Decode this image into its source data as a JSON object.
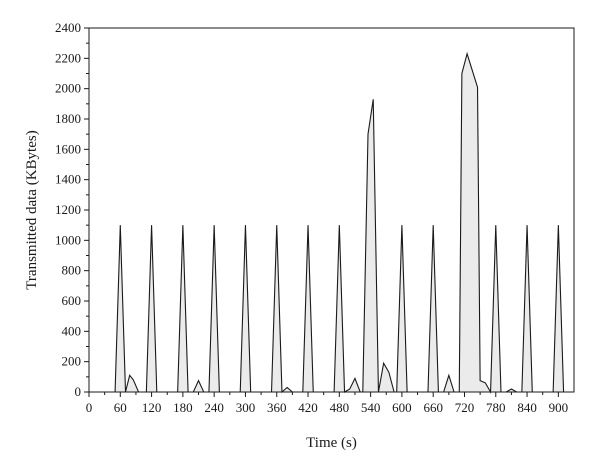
{
  "chart_data": {
    "type": "area",
    "xlabel": "Time (s)",
    "ylabel": "Transmitted data (KBytes)",
    "xlim": [
      0,
      930
    ],
    "ylim": [
      0,
      2400
    ],
    "xticks": [
      0,
      60,
      120,
      180,
      240,
      300,
      360,
      420,
      480,
      540,
      600,
      660,
      720,
      780,
      840,
      900
    ],
    "yticks": [
      0,
      200,
      400,
      600,
      800,
      1000,
      1200,
      1400,
      1600,
      1800,
      2000,
      2200,
      2400
    ],
    "grid": false,
    "fill_color": "#ebebeb",
    "line_color": "#1a1a1a",
    "series": [
      {
        "points": [
          [
            50,
            0
          ],
          [
            60,
            1100
          ],
          [
            70,
            0
          ],
          [
            78,
            110
          ],
          [
            85,
            80
          ],
          [
            95,
            0
          ],
          [
            110,
            0
          ],
          [
            120,
            1100
          ],
          [
            130,
            0
          ],
          [
            170,
            0
          ],
          [
            180,
            1100
          ],
          [
            190,
            0
          ],
          [
            200,
            0
          ],
          [
            210,
            75
          ],
          [
            220,
            0
          ],
          [
            230,
            0
          ],
          [
            240,
            1100
          ],
          [
            250,
            0
          ],
          [
            290,
            0
          ],
          [
            300,
            1100
          ],
          [
            310,
            0
          ],
          [
            350,
            0
          ],
          [
            360,
            1100
          ],
          [
            370,
            0
          ],
          [
            380,
            30
          ],
          [
            390,
            0
          ],
          [
            410,
            0
          ],
          [
            420,
            1100
          ],
          [
            430,
            0
          ],
          [
            470,
            0
          ],
          [
            480,
            1100
          ],
          [
            490,
            0
          ],
          [
            500,
            20
          ],
          [
            510,
            90
          ],
          [
            520,
            0
          ],
          [
            525,
            0
          ],
          [
            535,
            1700
          ],
          [
            545,
            1930
          ],
          [
            555,
            0
          ],
          [
            565,
            190
          ],
          [
            575,
            130
          ],
          [
            585,
            0
          ],
          [
            590,
            0
          ],
          [
            600,
            1100
          ],
          [
            610,
            0
          ],
          [
            650,
            0
          ],
          [
            660,
            1100
          ],
          [
            670,
            0
          ],
          [
            680,
            0
          ],
          [
            690,
            110
          ],
          [
            700,
            0
          ],
          [
            710,
            0
          ],
          [
            715,
            2100
          ],
          [
            725,
            2230
          ],
          [
            745,
            2010
          ],
          [
            750,
            75
          ],
          [
            760,
            60
          ],
          [
            770,
            0
          ],
          [
            770,
            0
          ],
          [
            780,
            1100
          ],
          [
            790,
            0
          ],
          [
            800,
            0
          ],
          [
            810,
            20
          ],
          [
            820,
            0
          ],
          [
            830,
            0
          ],
          [
            840,
            1100
          ],
          [
            850,
            0
          ],
          [
            890,
            0
          ],
          [
            900,
            1100
          ],
          [
            910,
            0
          ]
        ]
      }
    ]
  }
}
